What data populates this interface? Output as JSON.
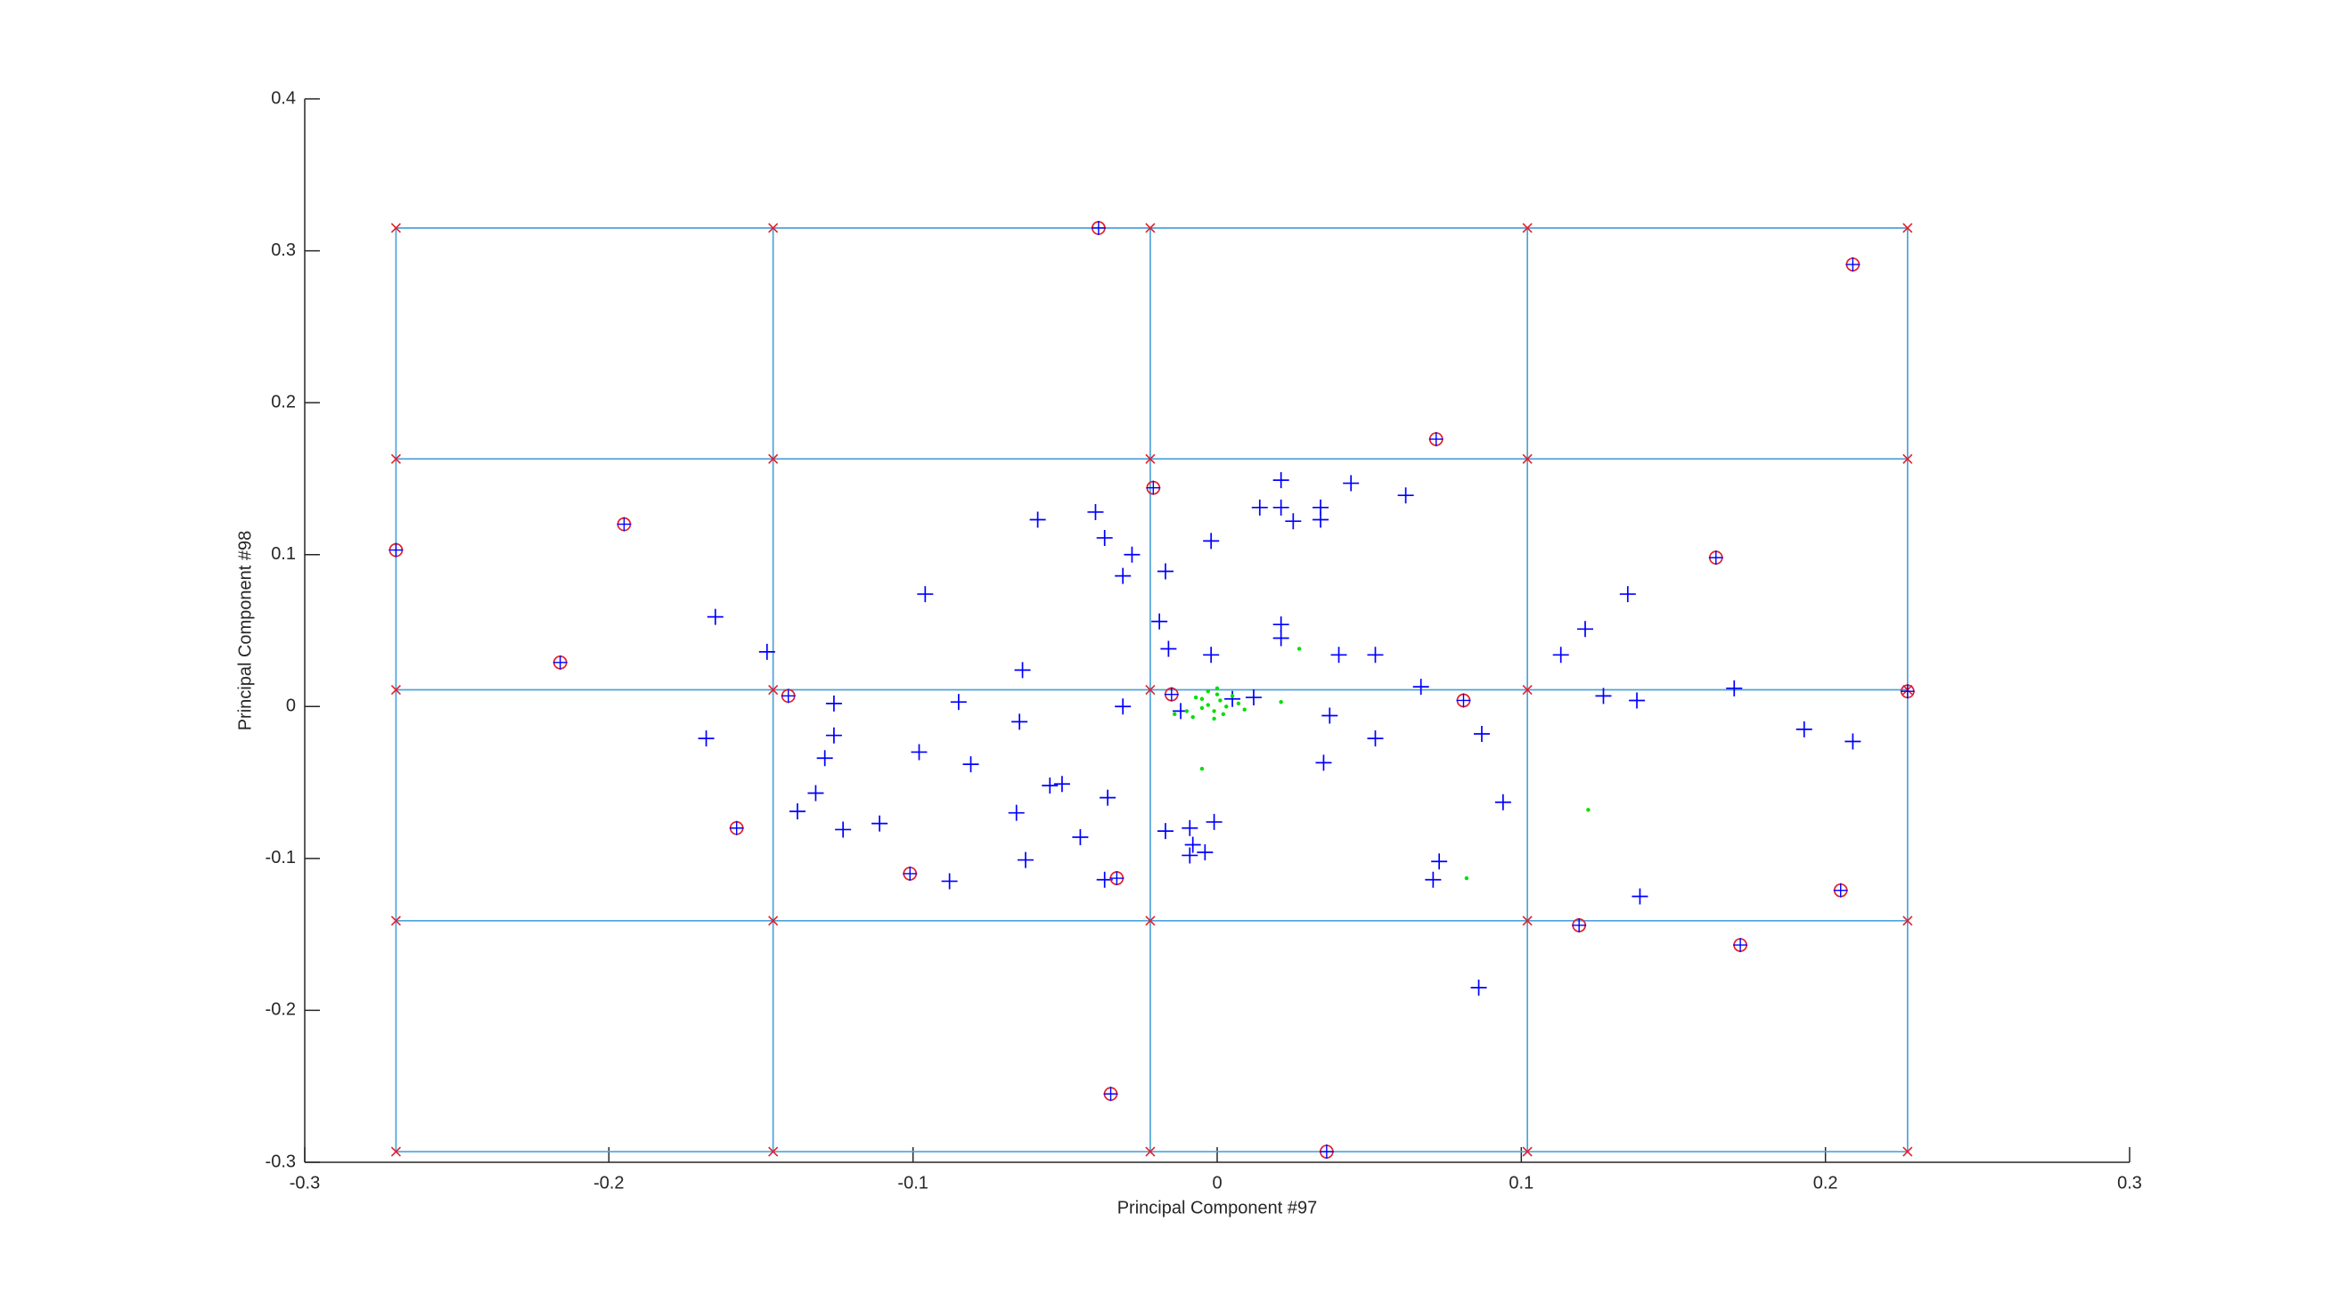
{
  "chart_data": {
    "type": "scatter",
    "xlabel": "Principal Component #97",
    "ylabel": "Principal Component #98",
    "xlim": [
      -0.3,
      0.3
    ],
    "ylim": [
      -0.3,
      0.4
    ],
    "xticks": [
      -0.3,
      -0.2,
      -0.1,
      0,
      0.1,
      0.2,
      0.3
    ],
    "yticks": [
      -0.3,
      -0.2,
      -0.1,
      0,
      0.1,
      0.2,
      0.3,
      0.4
    ],
    "grid": false,
    "mesh": {
      "x": [
        -0.27,
        -0.146,
        -0.022,
        0.102,
        0.227
      ],
      "y": [
        0.315,
        0.163,
        0.011,
        -0.141,
        -0.293
      ],
      "color": "#4da3d9",
      "node_color": "#e0202c"
    },
    "series": [
      {
        "marker": "plus",
        "color": "#0000ff",
        "x": [
          -0.059,
          -0.04,
          -0.037,
          -0.028,
          -0.031,
          -0.017,
          -0.002,
          -0.096,
          -0.165,
          -0.148,
          -0.019,
          -0.016,
          -0.002,
          0.021,
          0.021,
          0.014,
          0.021,
          0.021,
          0.025,
          0.034,
          0.034,
          0.044,
          0.062,
          0.04,
          0.052,
          0.135,
          0.121,
          0.113,
          0.127,
          0.138,
          0.17,
          0.193,
          0.209,
          0.067,
          0.037,
          0.052,
          0.087,
          0.094,
          0.035,
          0.073,
          0.071,
          0.086,
          0.139,
          -0.064,
          -0.085,
          -0.126,
          -0.031,
          -0.012,
          0.005,
          0.012,
          -0.168,
          -0.126,
          -0.129,
          -0.098,
          -0.081,
          -0.065,
          -0.132,
          -0.138,
          -0.123,
          -0.111,
          -0.066,
          -0.055,
          -0.051,
          -0.036,
          -0.063,
          -0.088,
          -0.045,
          -0.037,
          -0.017,
          -0.009,
          -0.001,
          -0.008,
          -0.009,
          -0.004
        ],
        "values": [
          0.123,
          0.128,
          0.111,
          0.1,
          0.086,
          0.089,
          0.109,
          0.074,
          0.059,
          0.036,
          0.056,
          0.038,
          0.034,
          0.054,
          0.045,
          0.131,
          0.149,
          0.131,
          0.122,
          0.131,
          0.123,
          0.147,
          0.139,
          0.034,
          0.034,
          0.074,
          0.051,
          0.034,
          0.007,
          0.004,
          0.012,
          -0.015,
          -0.023,
          0.013,
          -0.006,
          -0.021,
          -0.018,
          -0.063,
          -0.037,
          -0.102,
          -0.114,
          -0.185,
          -0.125,
          0.024,
          0.003,
          0.002,
          0.0,
          -0.003,
          0.005,
          0.006,
          -0.021,
          -0.019,
          -0.034,
          -0.03,
          -0.038,
          -0.01,
          -0.057,
          -0.069,
          -0.081,
          -0.077,
          -0.07,
          -0.052,
          -0.051,
          -0.06,
          -0.101,
          -0.115,
          -0.086,
          -0.114,
          -0.082,
          -0.08,
          -0.076,
          -0.091,
          -0.098,
          -0.096
        ]
      },
      {
        "marker": "circle-plus",
        "color": "#e0202c",
        "inner_color": "#0000ff",
        "x": [
          -0.039,
          0.209,
          0.072,
          -0.021,
          -0.195,
          -0.27,
          0.164,
          -0.216,
          -0.141,
          -0.015,
          0.081,
          0.227,
          -0.158,
          -0.101,
          -0.033,
          0.205,
          0.119,
          0.172,
          -0.035,
          0.036
        ],
        "values": [
          0.315,
          0.291,
          0.176,
          0.144,
          0.12,
          0.103,
          0.098,
          0.029,
          0.007,
          0.008,
          0.004,
          0.01,
          -0.08,
          -0.11,
          -0.113,
          -0.121,
          -0.144,
          -0.157,
          -0.255,
          -0.293
        ]
      },
      {
        "marker": "dot",
        "color": "#00e000",
        "x": [
          0.027,
          0.021,
          -0.005,
          0.122,
          0.082,
          -0.014,
          -0.01,
          -0.008,
          -0.005,
          -0.003,
          -0.001,
          0.0,
          0.001,
          0.002,
          0.003,
          0.005,
          0.007,
          -0.001,
          -0.005,
          -0.007,
          0.0,
          0.009,
          -0.003
        ],
        "values": [
          0.038,
          0.003,
          -0.041,
          -0.068,
          -0.113,
          -0.005,
          -0.003,
          -0.007,
          0.005,
          0.001,
          -0.003,
          0.012,
          0.004,
          -0.005,
          0.0,
          0.007,
          0.002,
          -0.008,
          -0.001,
          0.006,
          0.008,
          -0.002,
          0.01
        ]
      }
    ]
  }
}
